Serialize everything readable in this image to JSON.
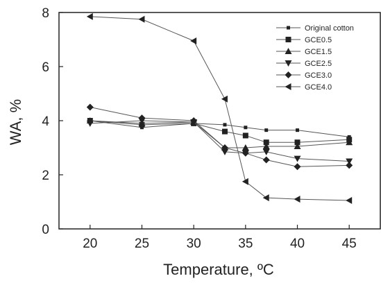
{
  "chart_data": {
    "type": "line",
    "title": "",
    "xlabel": "Temperature, ºC",
    "ylabel": "WA, %",
    "xlim": [
      17,
      48
    ],
    "ylim": [
      0,
      8
    ],
    "xticks": [
      20,
      25,
      30,
      35,
      40,
      45
    ],
    "yticks": [
      0,
      2,
      4,
      6,
      8
    ],
    "grid": false,
    "legend_position": "top-right",
    "x": [
      20,
      25,
      30,
      33,
      35,
      37,
      40,
      45
    ],
    "series": [
      {
        "name": "Original cotton",
        "marker": "square-small",
        "values": [
          4.0,
          3.75,
          3.9,
          3.85,
          3.75,
          3.65,
          3.65,
          3.4
        ]
      },
      {
        "name": "GCE0.5",
        "marker": "square",
        "values": [
          4.0,
          3.85,
          3.9,
          3.6,
          3.45,
          3.2,
          3.2,
          3.3
        ]
      },
      {
        "name": "GCE1.5",
        "marker": "triangle-up",
        "values": [
          4.0,
          3.9,
          3.95,
          3.0,
          3.0,
          3.05,
          3.05,
          3.2
        ]
      },
      {
        "name": "GCE2.5",
        "marker": "triangle-down",
        "values": [
          3.9,
          4.0,
          3.95,
          2.85,
          2.8,
          2.85,
          2.6,
          2.5
        ]
      },
      {
        "name": "GCE3.0",
        "marker": "diamond",
        "values": [
          4.5,
          4.1,
          4.0,
          3.0,
          2.8,
          2.55,
          2.3,
          2.35
        ]
      },
      {
        "name": "GCE4.0",
        "marker": "triangle-left",
        "values": [
          7.85,
          7.75,
          6.95,
          4.8,
          1.75,
          1.15,
          1.1,
          1.05
        ]
      }
    ]
  }
}
